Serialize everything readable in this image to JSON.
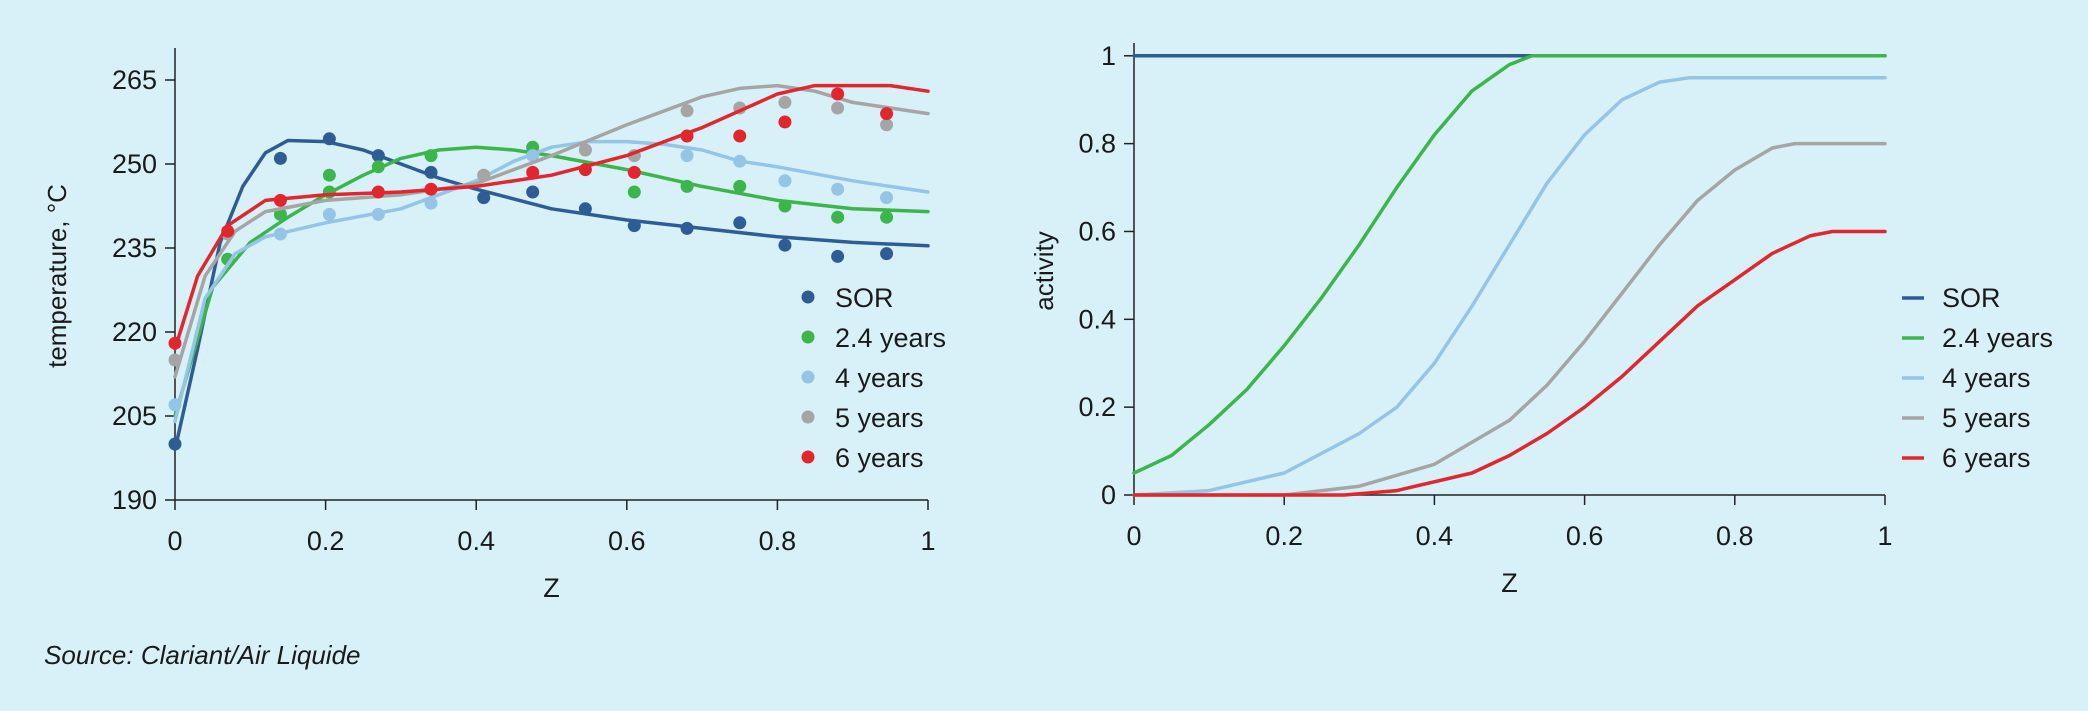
{
  "colors": {
    "SOR": "#2e5d95",
    "2.4 years": "#3cb54a",
    "4 years": "#94c4e6",
    "5 years": "#a5a5a5",
    "6 years": "#e2262d",
    "axis": "#222222",
    "background": "#d8f1f9"
  },
  "source": "Source: Clariant/Air Liquide",
  "chart_data": [
    {
      "type": "line+scatter",
      "xlabel": "Z",
      "ylabel": "temperature, °C",
      "xlim": [
        0,
        1
      ],
      "ylim": [
        190,
        270
      ],
      "xticks": [
        0,
        0.2,
        0.4,
        0.6,
        0.8,
        1
      ],
      "xtick_labels": [
        "0",
        "0.2",
        "0.4",
        "0.6",
        "0.8",
        "1"
      ],
      "yticks": [
        190,
        205,
        220,
        235,
        250,
        265
      ],
      "ytick_labels": [
        "190",
        "205",
        "220",
        "235",
        "250",
        "265"
      ],
      "grid": false,
      "legend": {
        "placement": "right",
        "marker": "dot",
        "entries": [
          "SOR",
          "2.4 years",
          "4 years",
          "5 years",
          "6 years"
        ]
      },
      "series": [
        {
          "name": "SOR",
          "line": [
            [
              0,
              199
            ],
            [
              0.03,
              217
            ],
            [
              0.06,
              236
            ],
            [
              0.09,
              246
            ],
            [
              0.12,
              252
            ],
            [
              0.15,
              254.2
            ],
            [
              0.2,
              254
            ],
            [
              0.25,
              252.5
            ],
            [
              0.3,
              250
            ],
            [
              0.35,
              247.5
            ],
            [
              0.4,
              245.5
            ],
            [
              0.5,
              242
            ],
            [
              0.6,
              240
            ],
            [
              0.7,
              238.5
            ],
            [
              0.8,
              237
            ],
            [
              0.9,
              236
            ],
            [
              1,
              235.4
            ]
          ],
          "points": [
            [
              0,
              200
            ],
            [
              0.14,
              251
            ],
            [
              0.205,
              254.5
            ],
            [
              0.27,
              251.5
            ],
            [
              0.34,
              248.5
            ],
            [
              0.41,
              244
            ],
            [
              0.475,
              245
            ],
            [
              0.545,
              242
            ],
            [
              0.61,
              239
            ],
            [
              0.68,
              238.5
            ],
            [
              0.75,
              239.5
            ],
            [
              0.81,
              235.5
            ],
            [
              0.88,
              233.5
            ],
            [
              0.945,
              234
            ]
          ]
        },
        {
          "name": "2.4 years",
          "line": [
            [
              0,
              205
            ],
            [
              0.05,
              228
            ],
            [
              0.1,
              236
            ],
            [
              0.15,
              240.5
            ],
            [
              0.2,
              244.5
            ],
            [
              0.25,
              248
            ],
            [
              0.3,
              251
            ],
            [
              0.35,
              252.5
            ],
            [
              0.4,
              253
            ],
            [
              0.45,
              252.5
            ],
            [
              0.5,
              251.5
            ],
            [
              0.6,
              249
            ],
            [
              0.7,
              246
            ],
            [
              0.8,
              243.5
            ],
            [
              0.9,
              242
            ],
            [
              1,
              241.5
            ]
          ],
          "points": [
            [
              0.07,
              233
            ],
            [
              0.14,
              241
            ],
            [
              0.205,
              248
            ],
            [
              0.205,
              245
            ],
            [
              0.27,
              249.5
            ],
            [
              0.34,
              251.5
            ],
            [
              0.475,
              253
            ],
            [
              0.61,
              245
            ],
            [
              0.68,
              246
            ],
            [
              0.75,
              246
            ],
            [
              0.81,
              242.5
            ],
            [
              0.88,
              240.5
            ],
            [
              0.945,
              240.5
            ]
          ]
        },
        {
          "name": "4 years",
          "line": [
            [
              0,
              204
            ],
            [
              0.04,
              226
            ],
            [
              0.08,
              234
            ],
            [
              0.12,
              237
            ],
            [
              0.2,
              239.5
            ],
            [
              0.3,
              242
            ],
            [
              0.4,
              247
            ],
            [
              0.45,
              250.5
            ],
            [
              0.5,
              253
            ],
            [
              0.55,
              254
            ],
            [
              0.6,
              254
            ],
            [
              0.65,
              253.5
            ],
            [
              0.7,
              252.5
            ],
            [
              0.75,
              250.5
            ],
            [
              0.8,
              249.5
            ],
            [
              0.9,
              247
            ],
            [
              1,
              245
            ]
          ],
          "points": [
            [
              0,
              207
            ],
            [
              0.14,
              237.5
            ],
            [
              0.205,
              241
            ],
            [
              0.27,
              241
            ],
            [
              0.34,
              243
            ],
            [
              0.41,
              248
            ],
            [
              0.475,
              251.5
            ],
            [
              0.545,
              252.5
            ],
            [
              0.61,
              251.5
            ],
            [
              0.68,
              251.5
            ],
            [
              0.75,
              250.5
            ],
            [
              0.81,
              247
            ],
            [
              0.88,
              245.5
            ],
            [
              0.945,
              244
            ]
          ]
        },
        {
          "name": "5 years",
          "line": [
            [
              0,
              212
            ],
            [
              0.04,
              230
            ],
            [
              0.08,
              238
            ],
            [
              0.12,
              241.5
            ],
            [
              0.2,
              243.5
            ],
            [
              0.3,
              244.5
            ],
            [
              0.4,
              246.5
            ],
            [
              0.5,
              251.5
            ],
            [
              0.6,
              257
            ],
            [
              0.7,
              262
            ],
            [
              0.75,
              263.5
            ],
            [
              0.8,
              264
            ],
            [
              0.85,
              263
            ],
            [
              0.9,
              261
            ],
            [
              1,
              259
            ]
          ],
          "points": [
            [
              0,
              215
            ],
            [
              0.07,
              237.5
            ],
            [
              0.41,
              248
            ],
            [
              0.545,
              252.5
            ],
            [
              0.61,
              251.5
            ],
            [
              0.68,
              259.5
            ],
            [
              0.75,
              260
            ],
            [
              0.81,
              261
            ],
            [
              0.88,
              260
            ],
            [
              0.945,
              257
            ]
          ]
        },
        {
          "name": "6 years",
          "line": [
            [
              0,
              217
            ],
            [
              0.03,
              230
            ],
            [
              0.07,
              239
            ],
            [
              0.12,
              243.5
            ],
            [
              0.2,
              244.5
            ],
            [
              0.3,
              245
            ],
            [
              0.4,
              246
            ],
            [
              0.5,
              248
            ],
            [
              0.6,
              251.5
            ],
            [
              0.7,
              256.5
            ],
            [
              0.75,
              259.5
            ],
            [
              0.8,
              262.5
            ],
            [
              0.85,
              264
            ],
            [
              0.9,
              264
            ],
            [
              0.95,
              264
            ],
            [
              1,
              263
            ]
          ],
          "points": [
            [
              0,
              218
            ],
            [
              0.07,
              238
            ],
            [
              0.14,
              243.5
            ],
            [
              0.27,
              245
            ],
            [
              0.34,
              245.5
            ],
            [
              0.475,
              248.5
            ],
            [
              0.545,
              249
            ],
            [
              0.61,
              248.5
            ],
            [
              0.68,
              255
            ],
            [
              0.75,
              255
            ],
            [
              0.81,
              257.5
            ],
            [
              0.88,
              262.5
            ],
            [
              0.945,
              259
            ]
          ]
        }
      ]
    },
    {
      "type": "line",
      "xlabel": "Z",
      "ylabel": "activity",
      "xlim": [
        0,
        1
      ],
      "ylim": [
        0,
        1.02
      ],
      "xticks": [
        0,
        0.2,
        0.4,
        0.6,
        0.8,
        1
      ],
      "xtick_labels": [
        "0",
        "0.2",
        "0.4",
        "0.6",
        "0.8",
        "1"
      ],
      "yticks": [
        0,
        0.2,
        0.4,
        0.6,
        0.8,
        1
      ],
      "ytick_labels": [
        "0",
        "0.2",
        "0.4",
        "0.6",
        "0.8",
        "1"
      ],
      "grid": false,
      "legend": {
        "placement": "right",
        "marker": "line",
        "entries": [
          "SOR",
          "2.4 years",
          "4 years",
          "5 years",
          "6 years"
        ]
      },
      "series": [
        {
          "name": "SOR",
          "line": [
            [
              0,
              1
            ],
            [
              1,
              1
            ]
          ]
        },
        {
          "name": "2.4 years",
          "line": [
            [
              0,
              0.05
            ],
            [
              0.05,
              0.09
            ],
            [
              0.1,
              0.16
            ],
            [
              0.15,
              0.24
            ],
            [
              0.2,
              0.34
            ],
            [
              0.25,
              0.45
            ],
            [
              0.3,
              0.57
            ],
            [
              0.35,
              0.7
            ],
            [
              0.4,
              0.82
            ],
            [
              0.45,
              0.92
            ],
            [
              0.5,
              0.98
            ],
            [
              0.53,
              1
            ],
            [
              1,
              1
            ]
          ]
        },
        {
          "name": "4 years",
          "line": [
            [
              0,
              0
            ],
            [
              0.1,
              0.01
            ],
            [
              0.2,
              0.05
            ],
            [
              0.3,
              0.14
            ],
            [
              0.35,
              0.2
            ],
            [
              0.4,
              0.3
            ],
            [
              0.45,
              0.43
            ],
            [
              0.5,
              0.57
            ],
            [
              0.55,
              0.71
            ],
            [
              0.6,
              0.82
            ],
            [
              0.65,
              0.9
            ],
            [
              0.7,
              0.94
            ],
            [
              0.74,
              0.95
            ],
            [
              1,
              0.95
            ]
          ]
        },
        {
          "name": "5 years",
          "line": [
            [
              0,
              0
            ],
            [
              0.2,
              0
            ],
            [
              0.3,
              0.02
            ],
            [
              0.4,
              0.07
            ],
            [
              0.5,
              0.17
            ],
            [
              0.55,
              0.25
            ],
            [
              0.6,
              0.35
            ],
            [
              0.65,
              0.46
            ],
            [
              0.7,
              0.57
            ],
            [
              0.75,
              0.67
            ],
            [
              0.8,
              0.74
            ],
            [
              0.85,
              0.79
            ],
            [
              0.88,
              0.8
            ],
            [
              1,
              0.8
            ]
          ]
        },
        {
          "name": "6 years",
          "line": [
            [
              0,
              0
            ],
            [
              0.28,
              0
            ],
            [
              0.35,
              0.01
            ],
            [
              0.45,
              0.05
            ],
            [
              0.5,
              0.09
            ],
            [
              0.55,
              0.14
            ],
            [
              0.6,
              0.2
            ],
            [
              0.65,
              0.27
            ],
            [
              0.7,
              0.35
            ],
            [
              0.75,
              0.43
            ],
            [
              0.8,
              0.49
            ],
            [
              0.85,
              0.55
            ],
            [
              0.9,
              0.59
            ],
            [
              0.93,
              0.6
            ],
            [
              1,
              0.6
            ]
          ]
        }
      ]
    }
  ]
}
